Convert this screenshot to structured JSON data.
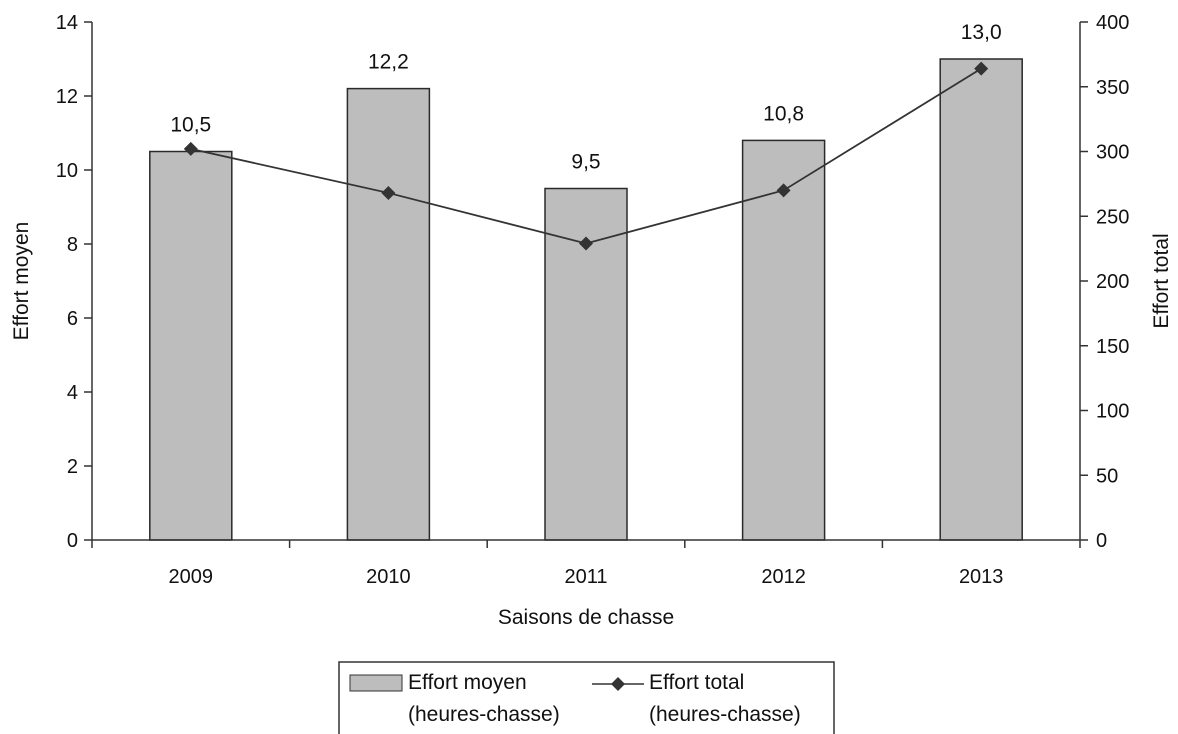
{
  "chart_data": {
    "type": "bar",
    "title": "",
    "categories": [
      "2009",
      "2010",
      "2011",
      "2012",
      "2013"
    ],
    "xlabel": "Saisons de chasse",
    "ylabel": "Effort moyen",
    "y2label": "Effort total",
    "ylim": [
      0,
      14
    ],
    "y2lim": [
      0,
      400
    ],
    "yticks": [
      "0",
      "2",
      "4",
      "6",
      "8",
      "10",
      "12",
      "14"
    ],
    "y2ticks": [
      "0",
      "50",
      "100",
      "150",
      "200",
      "250",
      "300",
      "350",
      "400"
    ],
    "grid": false,
    "legend_position": "bottom",
    "series": [
      {
        "name": "Effort moyen (heures-chasse)",
        "legend_lines": [
          "Effort moyen",
          "(heures-chasse)"
        ],
        "type": "bar",
        "axis": "left",
        "values": [
          10.5,
          12.2,
          9.5,
          10.8,
          13.0
        ],
        "labels": [
          "10,5",
          "12,2",
          "9,5",
          "10,8",
          "13,0"
        ],
        "color": "#bdbdbd"
      },
      {
        "name": "Effort total (heures-chasse)",
        "legend_lines": [
          "Effort total",
          "(heures-chasse)"
        ],
        "type": "line",
        "axis": "right",
        "values": [
          302,
          268,
          229,
          270,
          364
        ],
        "color": "#333333"
      }
    ]
  }
}
